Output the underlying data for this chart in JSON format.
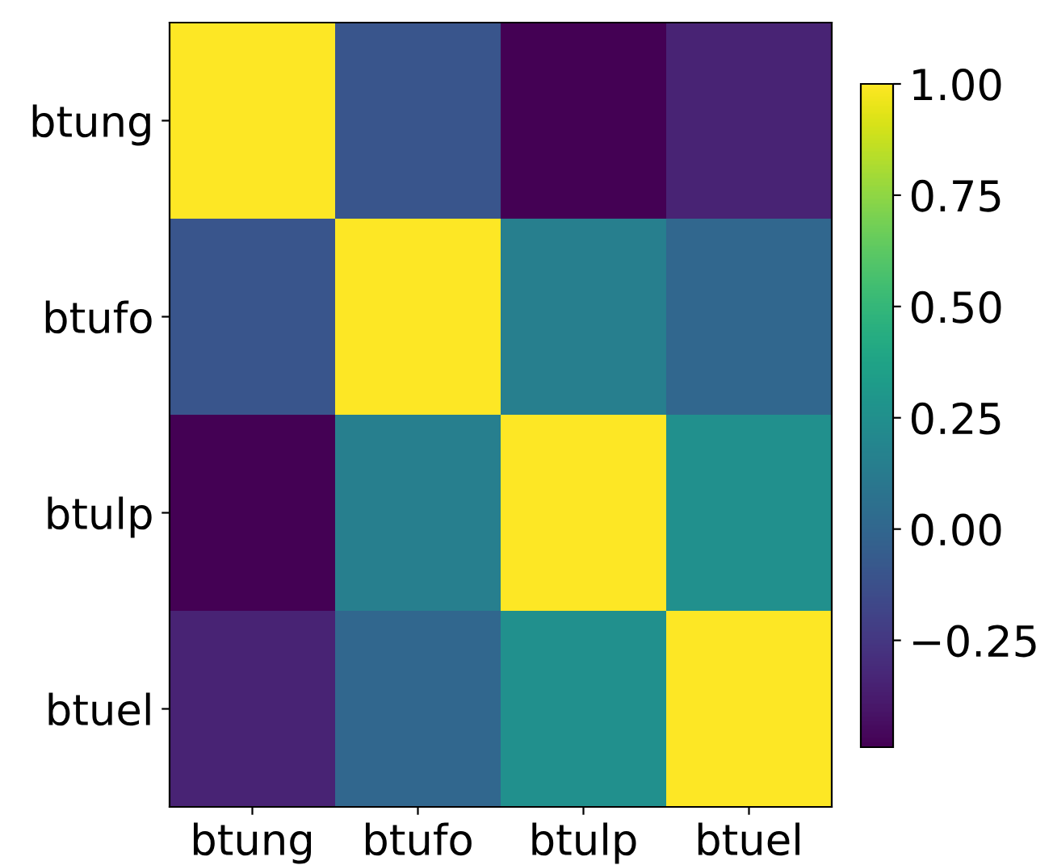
{
  "chart_data": {
    "type": "heatmap",
    "categories": [
      "btung",
      "btufo",
      "btulp",
      "btuel"
    ],
    "y_categories": [
      "btung",
      "btufo",
      "btulp",
      "btuel"
    ],
    "cells": [
      [
        1.0,
        -0.1,
        -0.49,
        -0.35
      ],
      [
        -0.1,
        1.0,
        0.15,
        0.0
      ],
      [
        -0.49,
        0.15,
        1.0,
        0.25
      ],
      [
        -0.35,
        0.0,
        0.25,
        1.0
      ]
    ],
    "clim": [
      -0.49,
      1.0
    ],
    "cticks": [
      {
        "value": -0.25,
        "label": "−0.25"
      },
      {
        "value": 0.0,
        "label": "0.00"
      },
      {
        "value": 0.25,
        "label": "0.25"
      },
      {
        "value": 0.5,
        "label": "0.50"
      },
      {
        "value": 0.75,
        "label": "0.75"
      },
      {
        "value": 1.0,
        "label": "1.00"
      }
    ],
    "grid": false
  }
}
